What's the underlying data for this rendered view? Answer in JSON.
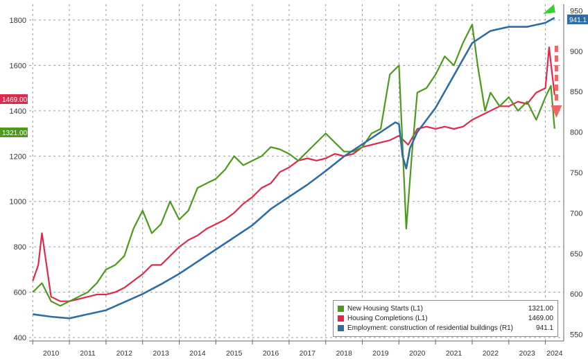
{
  "chart_data": {
    "type": "line",
    "x_range": [
      2009.9,
      2024.5
    ],
    "x_ticks": [
      "2010",
      "2011",
      "2012",
      "2013",
      "2014",
      "2015",
      "2016",
      "2017",
      "2018",
      "2019",
      "2020",
      "2021",
      "2022",
      "2023",
      "2024"
    ],
    "y_left": {
      "ticks": [
        400,
        600,
        800,
        1000,
        1200,
        1400,
        1600,
        1800
      ],
      "range": [
        385,
        1870
      ]
    },
    "y_right": {
      "ticks": [
        550,
        600,
        650,
        700,
        750,
        800,
        850,
        900,
        950
      ],
      "range": [
        542,
        958
      ]
    },
    "grid": true,
    "legend_position": "bottom-right",
    "series": [
      {
        "name": "New Housing Starts (L1)",
        "axis": "left",
        "color": "#4c9a1b",
        "last_value": "1321.00",
        "x": [
          2010.0,
          2010.25,
          2010.5,
          2010.75,
          2011.0,
          2011.25,
          2011.5,
          2011.75,
          2012.0,
          2012.25,
          2012.5,
          2012.75,
          2013.0,
          2013.25,
          2013.5,
          2013.75,
          2014.0,
          2014.25,
          2014.5,
          2014.75,
          2015.0,
          2015.25,
          2015.5,
          2015.75,
          2016.0,
          2016.25,
          2016.5,
          2016.75,
          2017.0,
          2017.25,
          2017.5,
          2017.75,
          2018.0,
          2018.25,
          2018.5,
          2018.75,
          2019.0,
          2019.25,
          2019.5,
          2019.75,
          2020.0,
          2020.2,
          2020.35,
          2020.5,
          2020.75,
          2021.0,
          2021.25,
          2021.5,
          2021.75,
          2022.0,
          2022.15,
          2022.35,
          2022.5,
          2022.75,
          2023.0,
          2023.25,
          2023.5,
          2023.75,
          2024.0,
          2024.15,
          2024.25
        ],
        "y": [
          600,
          640,
          560,
          540,
          560,
          580,
          600,
          640,
          700,
          720,
          760,
          880,
          960,
          860,
          900,
          1000,
          920,
          960,
          1060,
          1080,
          1100,
          1140,
          1200,
          1160,
          1180,
          1200,
          1240,
          1230,
          1210,
          1180,
          1220,
          1260,
          1300,
          1260,
          1220,
          1220,
          1240,
          1300,
          1320,
          1560,
          1600,
          880,
          1200,
          1480,
          1500,
          1560,
          1640,
          1600,
          1700,
          1780,
          1600,
          1400,
          1480,
          1420,
          1460,
          1400,
          1440,
          1360,
          1460,
          1510,
          1321
        ]
      },
      {
        "name": "Housing Completions (L1)",
        "axis": "left",
        "color": "#e0294a",
        "last_value": "1469.00",
        "x": [
          2010.0,
          2010.15,
          2010.25,
          2010.5,
          2010.75,
          2011.0,
          2011.25,
          2011.5,
          2011.75,
          2012.0,
          2012.25,
          2012.5,
          2012.75,
          2013.0,
          2013.25,
          2013.5,
          2013.75,
          2014.0,
          2014.25,
          2014.5,
          2014.75,
          2015.0,
          2015.25,
          2015.5,
          2015.75,
          2016.0,
          2016.25,
          2016.5,
          2016.75,
          2017.0,
          2017.25,
          2017.5,
          2017.75,
          2018.0,
          2018.25,
          2018.5,
          2018.75,
          2019.0,
          2019.25,
          2019.5,
          2019.75,
          2020.0,
          2020.25,
          2020.5,
          2020.75,
          2021.0,
          2021.25,
          2021.5,
          2021.75,
          2022.0,
          2022.25,
          2022.5,
          2022.75,
          2023.0,
          2023.25,
          2023.5,
          2023.75,
          2024.0,
          2024.1,
          2024.25
        ],
        "y": [
          650,
          720,
          860,
          580,
          560,
          560,
          570,
          580,
          590,
          590,
          600,
          620,
          650,
          680,
          720,
          720,
          760,
          800,
          830,
          850,
          880,
          900,
          920,
          950,
          990,
          1020,
          1060,
          1080,
          1130,
          1150,
          1180,
          1190,
          1180,
          1190,
          1210,
          1200,
          1210,
          1240,
          1250,
          1260,
          1270,
          1290,
          1250,
          1320,
          1330,
          1320,
          1330,
          1320,
          1330,
          1360,
          1380,
          1400,
          1420,
          1420,
          1440,
          1430,
          1480,
          1500,
          1680,
          1469
        ]
      },
      {
        "name": "Employment: construction of residential buildings (R1)",
        "axis": "right",
        "color": "#2e6da4",
        "last_value": "941.1",
        "x": [
          2010.0,
          2010.5,
          2011.0,
          2011.5,
          2012.0,
          2012.5,
          2013.0,
          2013.5,
          2014.0,
          2014.5,
          2015.0,
          2015.5,
          2016.0,
          2016.5,
          2017.0,
          2017.5,
          2018.0,
          2018.5,
          2019.0,
          2019.5,
          2019.9,
          2020.0,
          2020.1,
          2020.2,
          2020.3,
          2020.5,
          2020.75,
          2021.0,
          2021.5,
          2022.0,
          2022.5,
          2023.0,
          2023.5,
          2024.0,
          2024.25
        ],
        "y": [
          575,
          572,
          570,
          575,
          580,
          590,
          600,
          612,
          625,
          640,
          655,
          670,
          685,
          705,
          720,
          735,
          752,
          770,
          785,
          800,
          812,
          810,
          770,
          755,
          780,
          800,
          815,
          830,
          870,
          910,
          925,
          930,
          930,
          935,
          941.1
        ]
      }
    ],
    "annotations": [
      "green up arrow at end of employment series",
      "red dashed down arrow near housing starts end"
    ]
  },
  "tags": {
    "completions": "1469.00",
    "starts": "1321.00",
    "employment": "941.1"
  },
  "legend": [
    {
      "label": "New Housing Starts (L1)",
      "value": "1321.00",
      "color": "#4c9a1b"
    },
    {
      "label": "Housing Completions (L1)",
      "value": "1469.00",
      "color": "#e0294a"
    },
    {
      "label": "Employment: construction of residential buildings (R1)",
      "value": "941.1",
      "color": "#2e6da4"
    }
  ]
}
